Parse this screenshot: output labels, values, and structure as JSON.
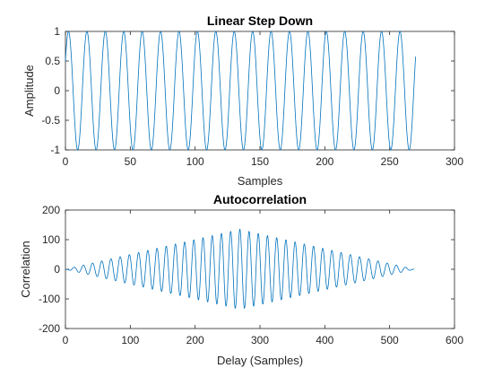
{
  "chart_data": [
    {
      "type": "line",
      "title": "Linear Step Down",
      "xlabel": "Samples",
      "ylabel": "Amplitude",
      "xlim": [
        0,
        300
      ],
      "ylim": [
        -1,
        1
      ],
      "xticks": [
        0,
        50,
        100,
        150,
        200,
        250,
        300
      ],
      "yticks": [
        -1,
        -0.5,
        0,
        0.5,
        1
      ],
      "series": [
        {
          "color": "#0072BD",
          "n_samples": 270,
          "period_samples": 14.2,
          "amplitude": 1,
          "start_value": 0.5,
          "end_value": -0.2
        }
      ]
    },
    {
      "type": "line",
      "title": "Autocorrelation",
      "xlabel": "Delay (Samples)",
      "ylabel": "Correlation",
      "xlim": [
        0,
        600
      ],
      "ylim": [
        -200,
        200
      ],
      "xticks": [
        0,
        100,
        200,
        300,
        400,
        500,
        600
      ],
      "yticks": [
        -200,
        -100,
        0,
        100,
        200
      ],
      "series": [
        {
          "color": "#0072BD",
          "x_range": [
            0,
            538
          ],
          "center_delay": 269,
          "peak_value": 135,
          "period_samples": 14.2
        }
      ]
    }
  ]
}
